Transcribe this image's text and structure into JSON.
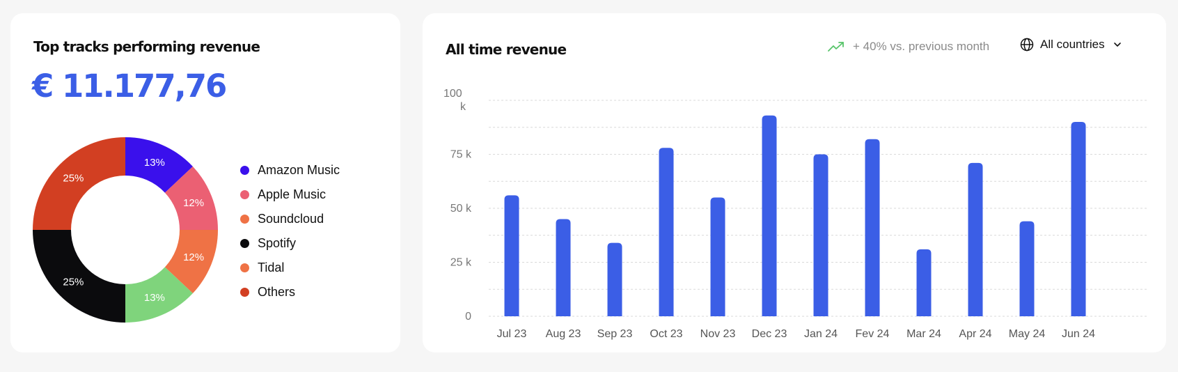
{
  "left_card": {
    "title": "Top tracks performing revenue",
    "total": "€ 11.177,76"
  },
  "right_card": {
    "title": "All time revenue",
    "trend_text": "+ 40% vs. previous month",
    "trend_icon": "trending-up-icon",
    "country_select": "All countries",
    "country_icon": "globe-icon"
  },
  "colors": {
    "accent": "#3b5ee6",
    "trend": "#57c46a"
  },
  "chart_data": [
    {
      "type": "pie",
      "donut": true,
      "categories": [
        "Amazon Music",
        "Apple Music",
        "Soundcloud",
        "Spotify",
        "Tidal",
        "Others"
      ],
      "colors": [
        "#3a10ec",
        "#eb6073",
        "#ef7245",
        "#0b0b0d",
        "#7fd47c",
        "#d23f22"
      ],
      "legend_colors": [
        "#3a10ec",
        "#eb6073",
        "#ef7245",
        "#0b0b0d",
        "#ef7245",
        "#d23f22"
      ],
      "slices": [
        {
          "label": "13%",
          "value": 13,
          "color": "#3a10ec"
        },
        {
          "label": "12%",
          "value": 12,
          "color": "#eb6073"
        },
        {
          "label": "12%",
          "value": 12,
          "color": "#ef7245"
        },
        {
          "label": "13%",
          "value": 13,
          "color": "#7fd47c"
        },
        {
          "label": "25%",
          "value": 25,
          "color": "#0b0b0d"
        },
        {
          "label": "25%",
          "value": 25,
          "color": "#d23f22"
        }
      ],
      "legend_placement": "right"
    },
    {
      "type": "bar",
      "categories": [
        "Jul 23",
        "Aug 23",
        "Sep 23",
        "Oct 23",
        "Nov 23",
        "Dec 23",
        "Jan 24",
        "Fev 24",
        "Mar 24",
        "Apr 24",
        "May 24",
        "Jun 24"
      ],
      "values": [
        56,
        45,
        34,
        78,
        55,
        93,
        75,
        82,
        31,
        71,
        44,
        90
      ],
      "ylim": [
        0,
        100
      ],
      "yticks": [
        "0",
        "25 k",
        "50 k",
        "75 k",
        "100 k"
      ],
      "ytick_values": [
        0,
        25,
        50,
        75,
        100
      ],
      "grid": true,
      "color": "#3b5ee6"
    }
  ]
}
